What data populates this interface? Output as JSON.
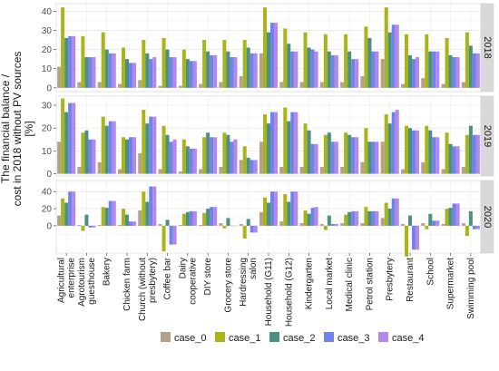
{
  "chart_data": {
    "type": "bar",
    "ylabel": "The financial balance / cost in 2018 without PV sources [%]",
    "ylabel_lines": [
      "The financial balance /",
      "cost in 2018 without PV sources",
      "[%]"
    ],
    "categories": [
      "Agricultural enterprise",
      "Agrotourism guesthouse",
      "Bakery",
      "Chicken farm",
      "Church (without presbytery)",
      "Coffee bar",
      "Dairy cooperative",
      "DIY store",
      "Grocery store",
      "Hardressing salon",
      "Household (G11)",
      "Household (G12)",
      "Kindergarten",
      "Local market",
      "Medical clinic",
      "Petrol station",
      "Presbytery",
      "Restaurant",
      "School",
      "Supermarket",
      "Swimming pool"
    ],
    "category_lines": [
      [
        "Agricultural",
        "enterprise"
      ],
      [
        "Agrotourism",
        "guesthouse"
      ],
      [
        "Bakery"
      ],
      [
        "Chicken farm"
      ],
      [
        "Church (without",
        "presbytery)"
      ],
      [
        "Coffee bar"
      ],
      [
        "Dairy",
        "cooperative"
      ],
      [
        "DIY store"
      ],
      [
        "Grocery store"
      ],
      [
        "Hardressing",
        "salon"
      ],
      [
        "Household (G11)"
      ],
      [
        "Household (G12)"
      ],
      [
        "Kindergarten"
      ],
      [
        "Local market"
      ],
      [
        "Medical clinic"
      ],
      [
        "Petrol station"
      ],
      [
        "Presbytery"
      ],
      [
        "Restaurant"
      ],
      [
        "School"
      ],
      [
        "Supermarket"
      ],
      [
        "Swimming pool"
      ]
    ],
    "panels": [
      {
        "label": "2018",
        "ylim": [
          -2,
          44
        ],
        "yticks": [
          0,
          10,
          20,
          30,
          40
        ],
        "series": [
          {
            "name": "case_0",
            "values": [
              11,
              3,
              3,
              2,
              4,
              1,
              1,
              2,
              3,
              6,
              18,
              3,
              3,
              3,
              3,
              6,
              15,
              2,
              5,
              2,
              3
            ]
          },
          {
            "name": "case_1",
            "values": [
              42,
              27,
              29,
              21,
              25,
              26,
              20,
              25,
              25,
              25,
              42,
              31,
              29,
              28,
              28,
              32,
              42,
              28,
              28,
              26,
              29
            ]
          },
          {
            "name": "case_2",
            "values": [
              26,
              16,
              20,
              15,
              18,
              20,
              15,
              19,
              19,
              21,
              29,
              23,
              21,
              19,
              19,
              26,
              29,
              17,
              19,
              17,
              22
            ]
          },
          {
            "name": "case_3",
            "values": [
              27,
              16,
              18,
              13,
              15,
              16,
              14,
              17,
              16,
              18,
              34,
              19,
              20,
              17,
              15,
              19,
              33,
              15,
              19,
              16,
              18
            ]
          },
          {
            "name": "case_4",
            "values": [
              27,
              16,
              18,
              13,
              16,
              16,
              14,
              17,
              16,
              18,
              34,
              19,
              19,
              17,
              15,
              19,
              33,
              16,
              19,
              16,
              18
            ]
          }
        ]
      },
      {
        "label": "2019",
        "ylim": [
          -1,
          34
        ],
        "yticks": [
          0,
          10,
          20,
          30
        ],
        "series": [
          {
            "name": "case_0",
            "values": [
              14,
              3,
              5,
              2,
              9,
              2,
              1,
              2,
              3,
              6,
              14,
              3,
              3,
              3,
              3,
              5,
              14,
              2,
              5,
              2,
              3
            ]
          },
          {
            "name": "case_1",
            "values": [
              33,
              18,
              25,
              16,
              28,
              21,
              15,
              16,
              18,
              12,
              26,
              29,
              22,
              17,
              18,
              20,
              26,
              21,
              21,
              18,
              17
            ]
          },
          {
            "name": "case_2",
            "values": [
              27,
              19,
              21,
              15,
              22,
              17,
              12,
              18,
              17,
              7,
              22,
              23,
              19,
              18,
              17,
              14,
              22,
              20,
              19,
              13,
              21
            ]
          },
          {
            "name": "case_3",
            "values": [
              31,
              15,
              23,
              16,
              25,
              14,
              11,
              16,
              14,
              6,
              27,
              27,
              13,
              14,
              16,
              14,
              27,
              19,
              16,
              12,
              17
            ]
          },
          {
            "name": "case_4",
            "values": [
              31,
              15,
              23,
              16,
              25,
              15,
              11,
              16,
              15,
              6,
              27,
              27,
              13,
              14,
              16,
              14,
              28,
              19,
              16,
              12,
              17
            ]
          }
        ]
      },
      {
        "label": "2020",
        "ylim": [
          -32,
          53
        ],
        "yticks": [
          0,
          20,
          40
        ],
        "series": [
          {
            "name": "case_0",
            "values": [
              12,
              1,
              1,
              1,
              18,
              2,
              1,
              1,
              3,
              2,
              16,
              5,
              3,
              2,
              3,
              3,
              9,
              2,
              3,
              2,
              3
            ]
          },
          {
            "name": "case_1",
            "values": [
              32,
              -6,
              22,
              20,
              40,
              -30,
              14,
              15,
              -3,
              -15,
              33,
              37,
              18,
              -5,
              13,
              22,
              27,
              -36,
              -4,
              20,
              -12
            ]
          },
          {
            "name": "case_2",
            "values": [
              27,
              13,
              21,
              13,
              28,
              7,
              16,
              20,
              9,
              8,
              27,
              28,
              14,
              12,
              16,
              17,
              20,
              12,
              14,
              21,
              17
            ]
          },
          {
            "name": "case_3",
            "values": [
              40,
              -2,
              29,
              5,
              46,
              -22,
              17,
              22,
              0,
              -8,
              40,
              40,
              21,
              2,
              17,
              17,
              32,
              -28,
              6,
              26,
              -4
            ]
          },
          {
            "name": "case_4",
            "values": [
              40,
              -2,
              29,
              5,
              46,
              -22,
              17,
              22,
              0,
              -8,
              40,
              40,
              22,
              2,
              17,
              17,
              32,
              -28,
              6,
              26,
              -4
            ]
          }
        ]
      }
    ],
    "legend": {
      "position": "bottom",
      "entries": [
        "case_0",
        "case_1",
        "case_2",
        "case_3",
        "case_4"
      ]
    },
    "colors": [
      "#b5a08c",
      "#a8b51a",
      "#4e8f81",
      "#6f83e8",
      "#b488eb"
    ],
    "grid": true
  }
}
